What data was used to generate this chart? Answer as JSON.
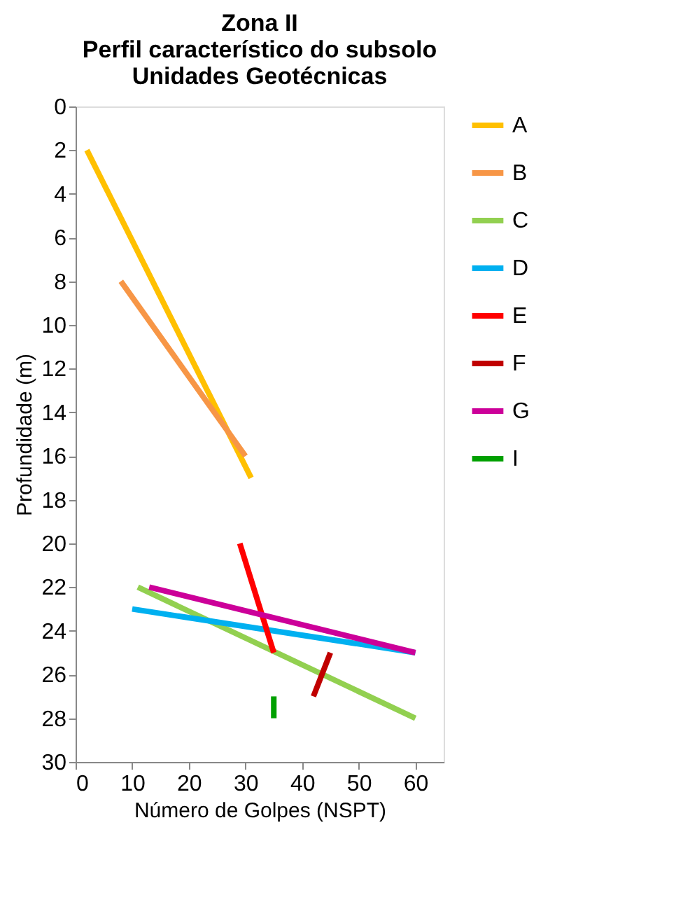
{
  "chart_data": {
    "type": "line",
    "title": "Zona II\nPerfil característico do  subsolo\nUnidades Geotécnicas",
    "xlabel": "Número de Golpes (NSPT)",
    "ylabel": "Profundidade (m)",
    "xlim": [
      0,
      65
    ],
    "xticks": [
      0,
      10,
      20,
      30,
      40,
      50,
      60
    ],
    "ylim": [
      30,
      0
    ],
    "yticks": [
      0,
      2,
      4,
      6,
      8,
      10,
      12,
      14,
      16,
      18,
      20,
      22,
      24,
      26,
      28,
      30
    ],
    "grid": false,
    "legend": "right",
    "marker": "none",
    "line_style": "solid",
    "series": [
      {
        "name": "A",
        "color": "#ffc000",
        "x": [
          2,
          31
        ],
        "values": [
          2,
          17
        ]
      },
      {
        "name": "B",
        "color": "#f79646",
        "x": [
          8,
          30
        ],
        "values": [
          8,
          16
        ]
      },
      {
        "name": "C",
        "color": "#92d050",
        "x": [
          11,
          60
        ],
        "values": [
          22,
          28
        ]
      },
      {
        "name": "D",
        "color": "#00b0f0",
        "x": [
          10,
          60
        ],
        "values": [
          23,
          25
        ]
      },
      {
        "name": "E",
        "color": "#ff0000",
        "x": [
          29,
          35
        ],
        "values": [
          20,
          25
        ]
      },
      {
        "name": "F",
        "color": "#c00000",
        "x": [
          42,
          45
        ],
        "values": [
          27,
          25
        ]
      },
      {
        "name": "G",
        "color": "#cc0099",
        "x": [
          13,
          60
        ],
        "values": [
          22,
          25
        ]
      },
      {
        "name": "I",
        "color": "#00a000",
        "x": [
          35,
          35
        ],
        "values": [
          27,
          28
        ]
      }
    ]
  }
}
